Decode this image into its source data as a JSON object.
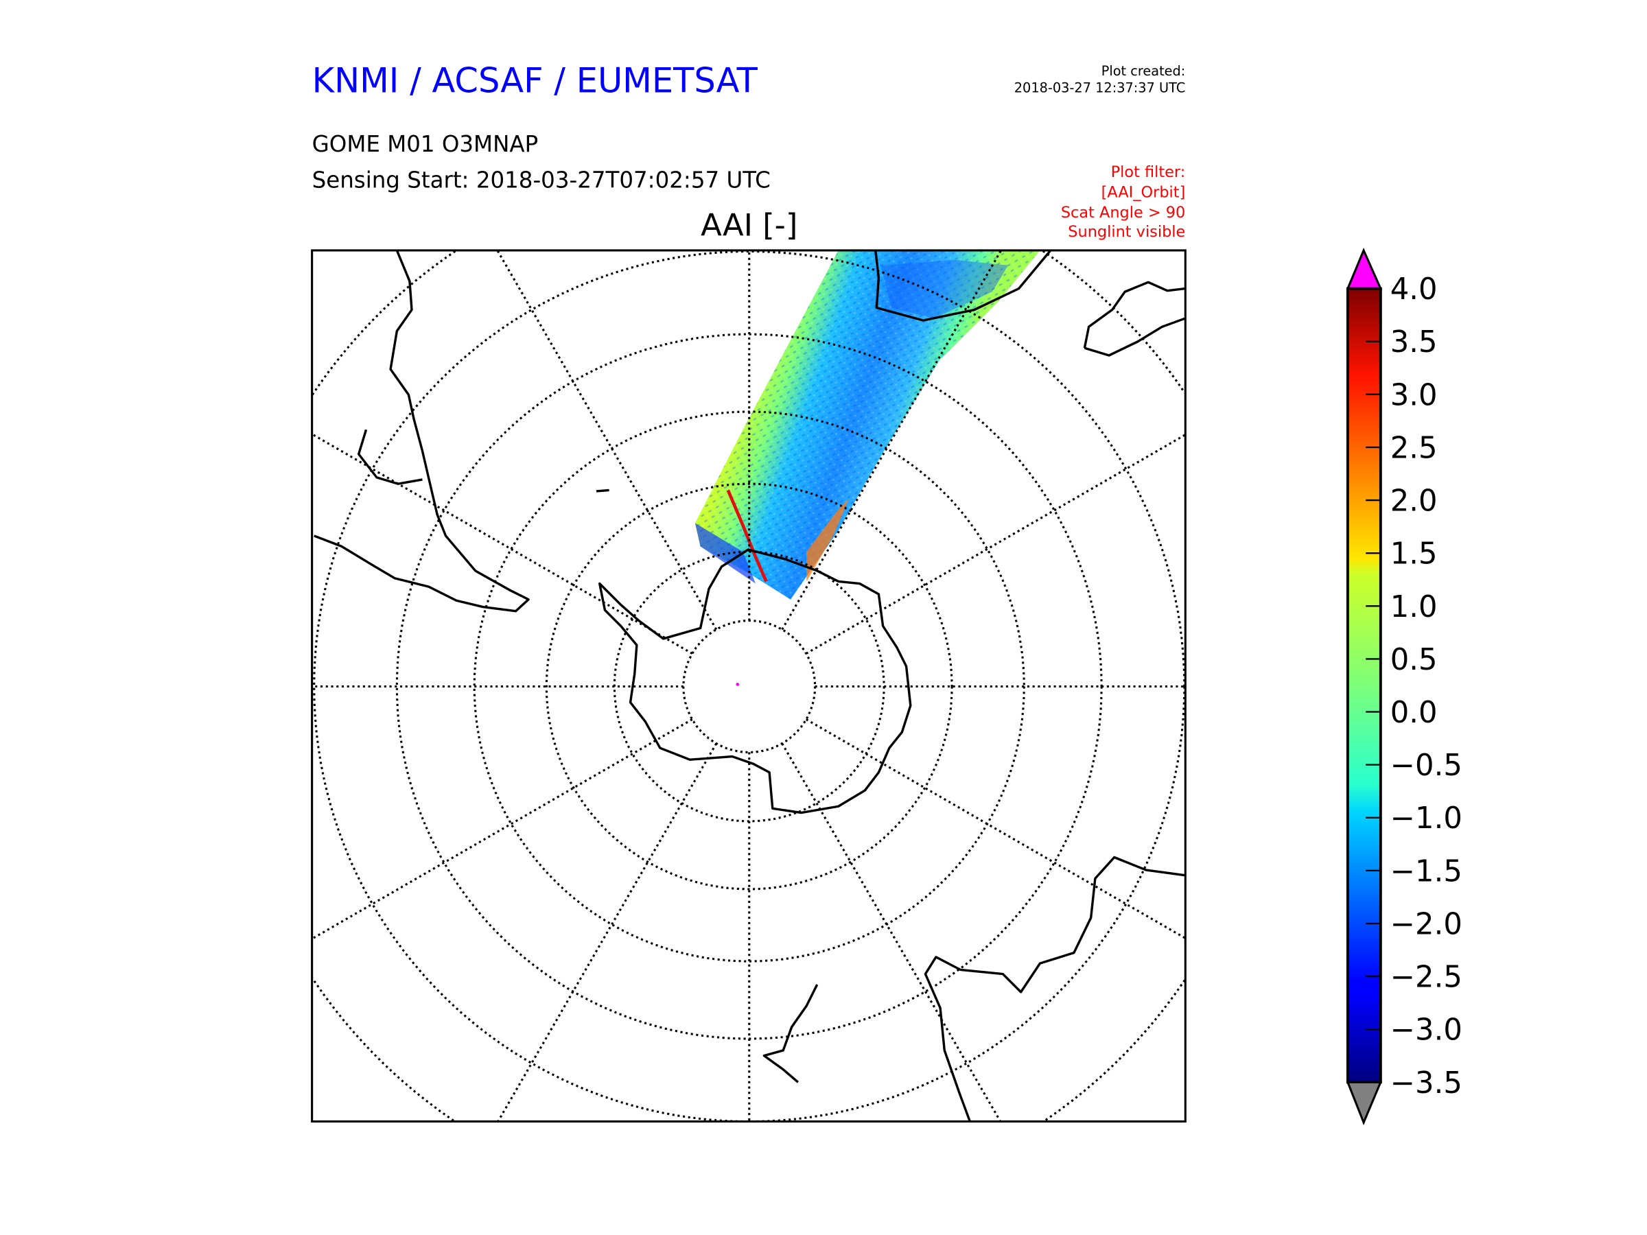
{
  "header": {
    "org": "KNMI / ACSAF / EUMETSAT",
    "created_label": "Plot created:",
    "created_value": "2018-03-27 12:37:37 UTC",
    "product": "GOME M01 O3MNAP",
    "sensing_start": "Sensing Start: 2018-03-27T07:02:57 UTC",
    "filter_lines": [
      "Plot filter:",
      "[AAI_Orbit]",
      "Scat Angle > 90",
      "Sunglint visible"
    ]
  },
  "colors": {
    "org": "#0000ff",
    "filter": "#ff0000",
    "over": "#ff00ff",
    "under": "#808080"
  },
  "chart_data": {
    "type": "heatmap",
    "title": "AAI [-]",
    "projection": "south polar stereographic",
    "colormap": "jet",
    "colorbar": {
      "range": [
        -3.5,
        4.0
      ],
      "ticks": [
        4.0,
        3.5,
        3.0,
        2.5,
        2.0,
        1.5,
        1.0,
        0.5,
        0.0,
        -0.5,
        -1.0,
        -1.5,
        -2.0,
        -2.5,
        -3.0,
        -3.5
      ],
      "tick_labels": [
        "4.0",
        "3.5",
        "3.0",
        "2.5",
        "2.0",
        "1.5",
        "1.0",
        "0.5",
        "0.0",
        "−0.5",
        "−1.0",
        "−1.5",
        "−2.0",
        "−2.5",
        "−3.0",
        "−3.5"
      ],
      "extend": "both"
    },
    "graticule": {
      "parallels_step_deg": 10,
      "meridians_step_deg": 30
    }
  }
}
